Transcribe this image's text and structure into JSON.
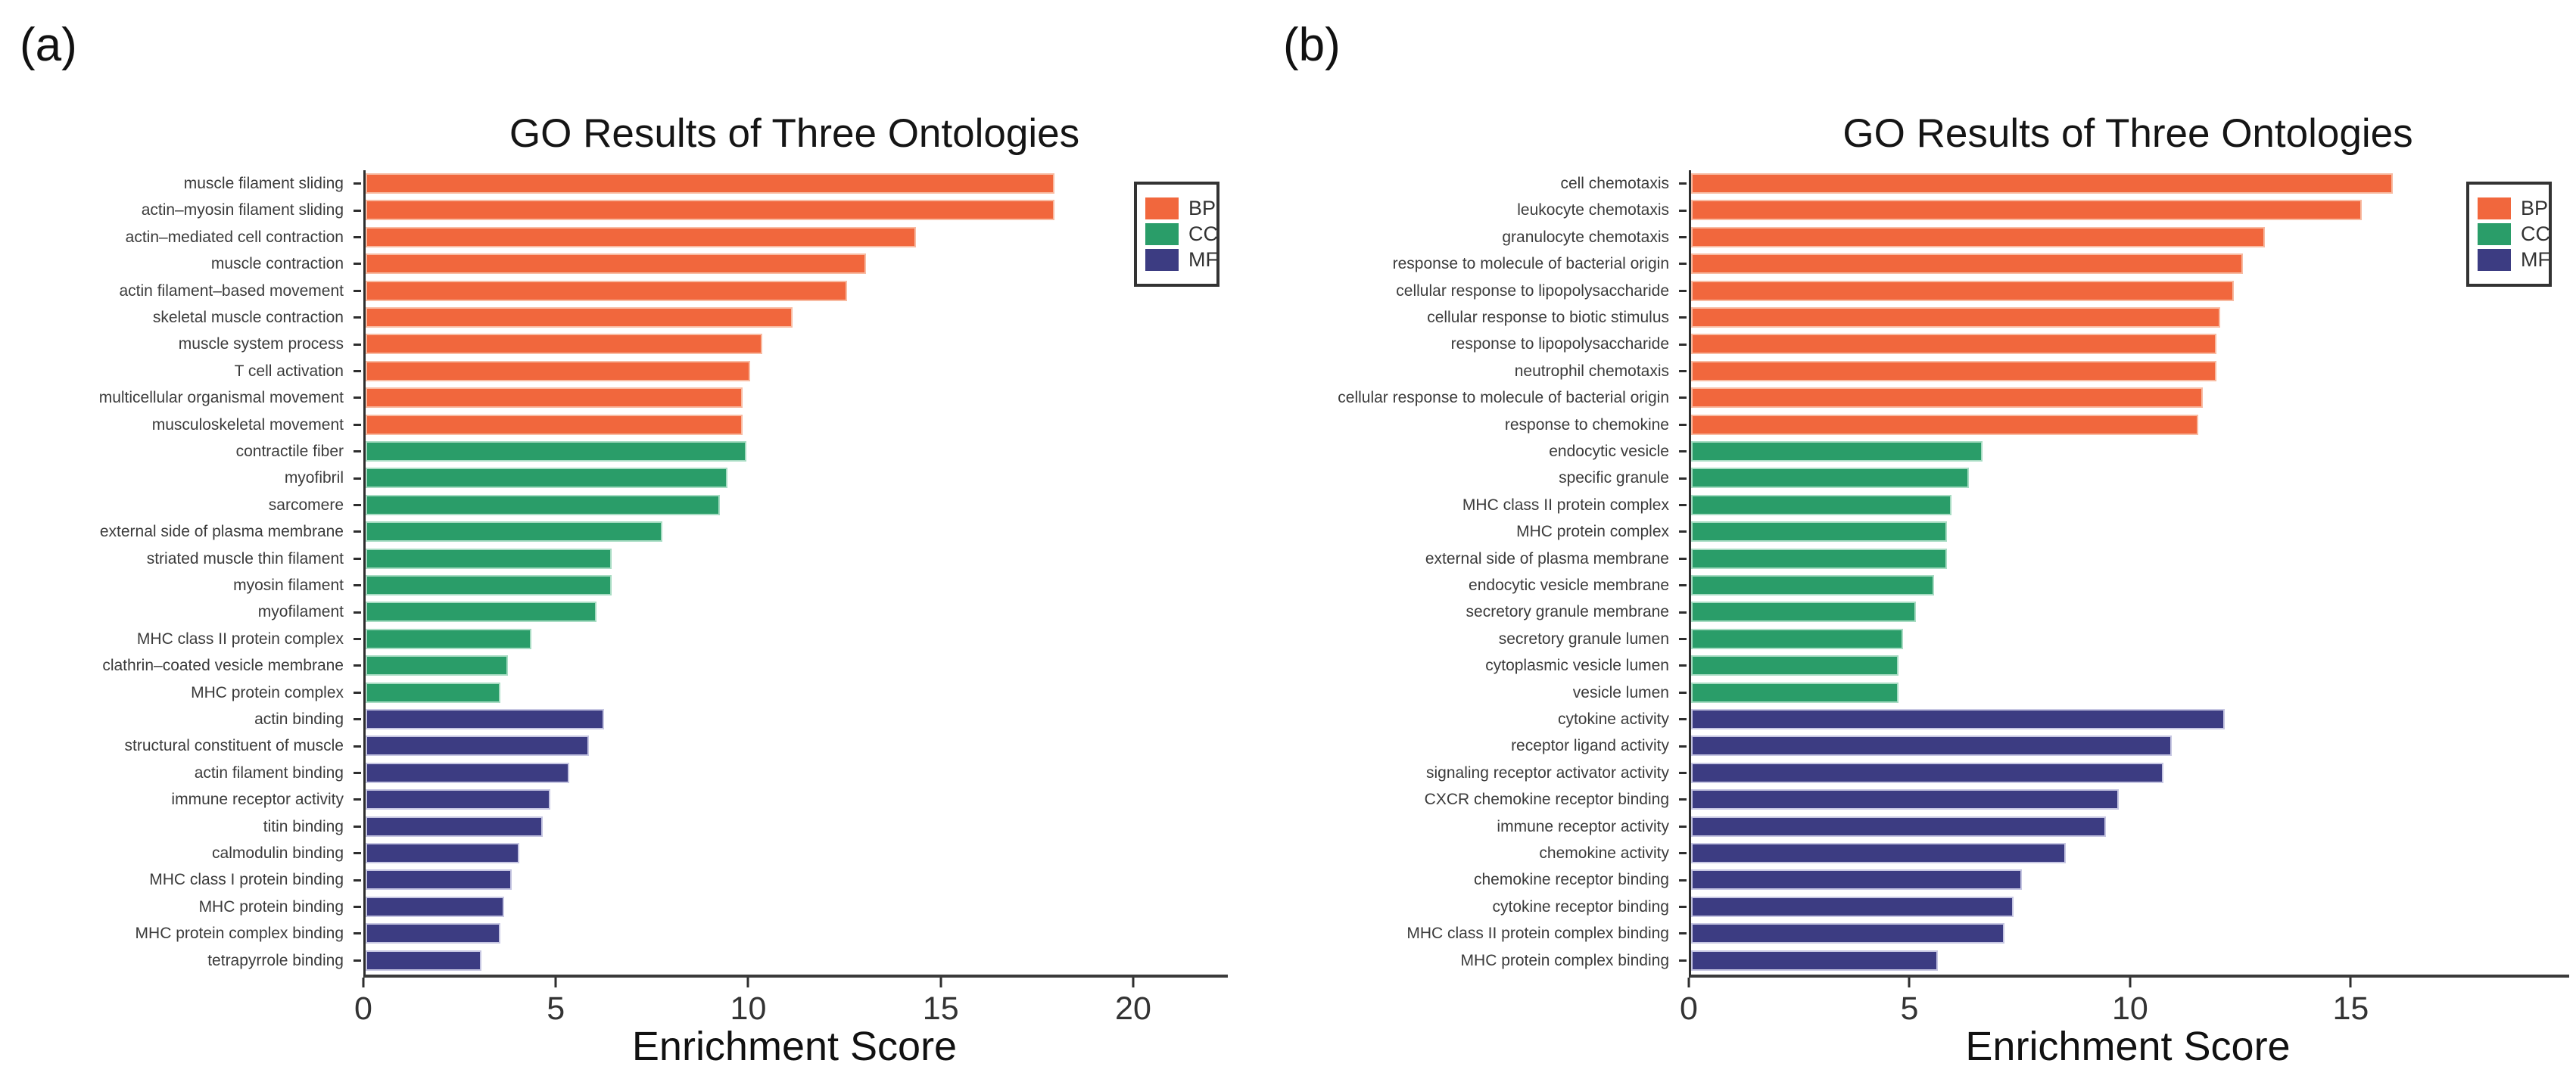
{
  "figure": {
    "background": "#ffffff",
    "colors": {
      "BP": "#F1673D",
      "CC": "#2A9D69",
      "MF": "#3C3C82"
    },
    "border_colors": {
      "BP": "#F8BBA2",
      "CC": "#A8DCC3",
      "MF": "#C6C6E2"
    },
    "legend_labels": [
      "BP",
      "CC",
      "MF"
    ]
  },
  "chart_data": [
    {
      "type": "bar",
      "orientation": "horizontal",
      "panel_label": "(a)",
      "title": "GO Results of Three Ontologies",
      "xlabel": "Enrichment Score",
      "axis_max": 22.4,
      "x_ticks": [
        0,
        5,
        10,
        15,
        20
      ],
      "grid": false,
      "legend_position": "top-right",
      "legend_entries": [
        "BP",
        "CC",
        "MF"
      ],
      "bars": [
        {
          "label": "muscle filament sliding",
          "group": "BP",
          "value": 17.9
        },
        {
          "label": "actin–myosin filament sliding",
          "group": "BP",
          "value": 17.9
        },
        {
          "label": "actin–mediated cell contraction",
          "group": "BP",
          "value": 14.3
        },
        {
          "label": "muscle contraction",
          "group": "BP",
          "value": 13.0
        },
        {
          "label": "actin filament–based movement",
          "group": "BP",
          "value": 12.5
        },
        {
          "label": "skeletal muscle contraction",
          "group": "BP",
          "value": 11.1
        },
        {
          "label": "muscle system process",
          "group": "BP",
          "value": 10.3
        },
        {
          "label": "T cell activation",
          "group": "BP",
          "value": 10.0
        },
        {
          "label": "multicellular organismal movement",
          "group": "BP",
          "value": 9.8
        },
        {
          "label": "musculoskeletal movement",
          "group": "BP",
          "value": 9.8
        },
        {
          "label": "contractile fiber",
          "group": "CC",
          "value": 9.9
        },
        {
          "label": "myofibril",
          "group": "CC",
          "value": 9.4
        },
        {
          "label": "sarcomere",
          "group": "CC",
          "value": 9.2
        },
        {
          "label": "external side of plasma membrane",
          "group": "CC",
          "value": 7.7
        },
        {
          "label": "striated muscle thin filament",
          "group": "CC",
          "value": 6.4
        },
        {
          "label": "myosin filament",
          "group": "CC",
          "value": 6.4
        },
        {
          "label": "myofilament",
          "group": "CC",
          "value": 6.0
        },
        {
          "label": "MHC class II protein complex",
          "group": "CC",
          "value": 4.3
        },
        {
          "label": "clathrin–coated vesicle membrane",
          "group": "CC",
          "value": 3.7
        },
        {
          "label": "MHC protein complex",
          "group": "CC",
          "value": 3.5
        },
        {
          "label": "actin binding",
          "group": "MF",
          "value": 6.2
        },
        {
          "label": "structural constituent of muscle",
          "group": "MF",
          "value": 5.8
        },
        {
          "label": "actin filament binding",
          "group": "MF",
          "value": 5.3
        },
        {
          "label": "immune receptor activity",
          "group": "MF",
          "value": 4.8
        },
        {
          "label": "titin binding",
          "group": "MF",
          "value": 4.6
        },
        {
          "label": "calmodulin binding",
          "group": "MF",
          "value": 4.0
        },
        {
          "label": "MHC class I protein binding",
          "group": "MF",
          "value": 3.8
        },
        {
          "label": "MHC protein binding",
          "group": "MF",
          "value": 3.6
        },
        {
          "label": "MHC protein complex binding",
          "group": "MF",
          "value": 3.5
        },
        {
          "label": "tetrapyrrole binding",
          "group": "MF",
          "value": 3.0
        }
      ]
    },
    {
      "type": "bar",
      "orientation": "horizontal",
      "panel_label": "(b)",
      "title": "GO Results of Three Ontologies",
      "xlabel": "Enrichment Score",
      "axis_max": 19.9,
      "x_ticks": [
        0,
        5,
        10,
        15
      ],
      "grid": false,
      "legend_position": "top-right",
      "legend_entries": [
        "BP",
        "CC",
        "MF"
      ],
      "bars": [
        {
          "label": "cell chemotaxis",
          "group": "BP",
          "value": 15.9
        },
        {
          "label": "leukocyte chemotaxis",
          "group": "BP",
          "value": 15.2
        },
        {
          "label": "granulocyte chemotaxis",
          "group": "BP",
          "value": 13.0
        },
        {
          "label": "response to molecule of bacterial origin",
          "group": "BP",
          "value": 12.5
        },
        {
          "label": "cellular response to lipopolysaccharide",
          "group": "BP",
          "value": 12.3
        },
        {
          "label": "cellular response to biotic stimulus",
          "group": "BP",
          "value": 12.0
        },
        {
          "label": "response to lipopolysaccharide",
          "group": "BP",
          "value": 11.9
        },
        {
          "label": "neutrophil chemotaxis",
          "group": "BP",
          "value": 11.9
        },
        {
          "label": "cellular response to molecule of bacterial origin",
          "group": "BP",
          "value": 11.6
        },
        {
          "label": "response to chemokine",
          "group": "BP",
          "value": 11.5
        },
        {
          "label": "endocytic vesicle",
          "group": "CC",
          "value": 6.6
        },
        {
          "label": "specific granule",
          "group": "CC",
          "value": 6.3
        },
        {
          "label": "MHC class II protein complex",
          "group": "CC",
          "value": 5.9
        },
        {
          "label": "MHC protein complex",
          "group": "CC",
          "value": 5.8
        },
        {
          "label": "external side of plasma membrane",
          "group": "CC",
          "value": 5.8
        },
        {
          "label": "endocytic vesicle membrane",
          "group": "CC",
          "value": 5.5
        },
        {
          "label": "secretory granule membrane",
          "group": "CC",
          "value": 5.1
        },
        {
          "label": "secretory granule lumen",
          "group": "CC",
          "value": 4.8
        },
        {
          "label": "cytoplasmic vesicle lumen",
          "group": "CC",
          "value": 4.7
        },
        {
          "label": "vesicle lumen",
          "group": "CC",
          "value": 4.7
        },
        {
          "label": "cytokine activity",
          "group": "MF",
          "value": 12.1
        },
        {
          "label": "receptor ligand activity",
          "group": "MF",
          "value": 10.9
        },
        {
          "label": "signaling receptor activator activity",
          "group": "MF",
          "value": 10.7
        },
        {
          "label": "CXCR chemokine receptor binding",
          "group": "MF",
          "value": 9.7
        },
        {
          "label": "immune receptor activity",
          "group": "MF",
          "value": 9.4
        },
        {
          "label": "chemokine activity",
          "group": "MF",
          "value": 8.5
        },
        {
          "label": "chemokine receptor binding",
          "group": "MF",
          "value": 7.5
        },
        {
          "label": "cytokine receptor binding",
          "group": "MF",
          "value": 7.3
        },
        {
          "label": "MHC class II protein complex binding",
          "group": "MF",
          "value": 7.1
        },
        {
          "label": "MHC protein complex binding",
          "group": "MF",
          "value": 5.6
        }
      ]
    }
  ]
}
